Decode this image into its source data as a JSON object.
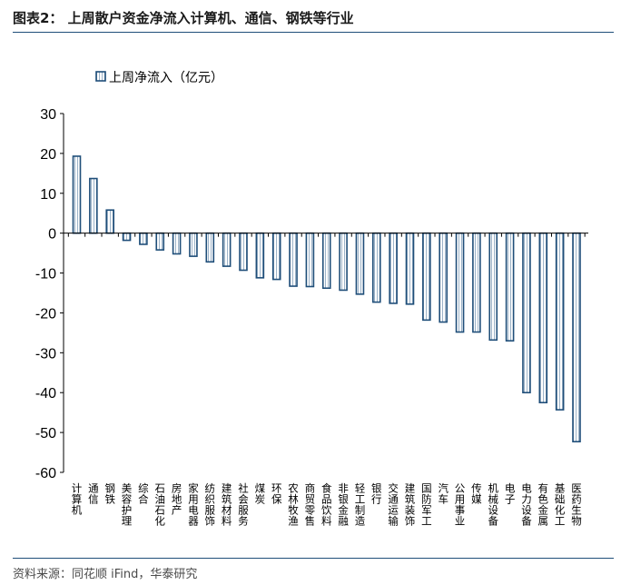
{
  "figure": {
    "title": "图表2：   上周散户资金净流入计算机、通信、钢铁等行业",
    "source": "资料来源：同花顺 iFind，华泰研究"
  },
  "colors": {
    "bar_border": "#1f4e79",
    "bar_fill": "#ffffff",
    "bar_stripe": "#9db3c8",
    "axis": "#000000",
    "rule": "#1f4e79"
  },
  "chart_data": {
    "type": "bar",
    "legend_position": "top-left",
    "grid": false,
    "ylim": [
      -60,
      30
    ],
    "yticks": [
      30,
      20,
      10,
      0,
      -10,
      -20,
      -30,
      -40,
      -50,
      -60
    ],
    "series": [
      {
        "name": "上周净流入（亿元）",
        "values": [
          19.3,
          13.7,
          5.8,
          -1.8,
          -2.8,
          -4.2,
          -5.2,
          -5.8,
          -7.2,
          -8.3,
          -9.3,
          -11.2,
          -11.6,
          -13.3,
          -13.4,
          -13.8,
          -14.3,
          -15.3,
          -17.3,
          -17.6,
          -17.8,
          -21.8,
          -22.3,
          -24.8,
          -24.8,
          -26.8,
          -27.0,
          -40.0,
          -42.5,
          -44.3,
          -52.3
        ]
      }
    ],
    "categories": [
      "计算机",
      "通信",
      "钢铁",
      "美容护理",
      "综合",
      "石油石化",
      "房地产",
      "家用电器",
      "纺织服饰",
      "建筑材料",
      "社会服务",
      "煤炭",
      "环保",
      "农林牧渔",
      "商贸零售",
      "食品饮料",
      "非银金融",
      "轻工制造",
      "银行",
      "交通运输",
      "建筑装饰",
      "国防军工",
      "汽车",
      "公用事业",
      "传媒",
      "机械设备",
      "电子",
      "电力设备",
      "有色金属",
      "基础化工",
      "医药生物"
    ]
  }
}
